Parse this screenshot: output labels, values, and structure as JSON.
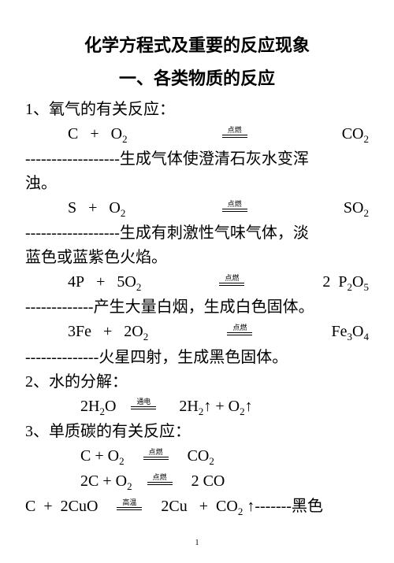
{
  "title": "化学方程式及重要的反应现象",
  "subtitle": "一、各类物质的反应",
  "s1": {
    "heading": "1、氧气的有关反应：",
    "r1": {
      "lhs": "C",
      "plus": "+",
      "o2": "O",
      "sub2": "2",
      "cond": "点燃",
      "rhs": "CO",
      "rsub": "2"
    },
    "d1a": "------------------",
    "d1b": "生成气体使澄清石灰水变浑",
    "d1c": "浊。",
    "r2": {
      "lhs": "S",
      "plus": "+",
      "o2": "O",
      "sub2": "2",
      "cond": "点燃",
      "rhs": "SO",
      "rsub": "2"
    },
    "d2a": "------------------",
    "d2b": "生成有刺激性气味气体，淡",
    "d2c": "蓝色或蓝紫色火焰。",
    "r3": {
      "lhs": "4P",
      "plus": "+",
      "o2": "5O",
      "sub2": "2",
      "cond": "点燃",
      "rcoef": "2",
      "rhs": "P",
      "r2": "2",
      "r3": "O",
      "r5": "5"
    },
    "d3": "-------------产生大量白烟，生成白色固体。",
    "r4": {
      "lhs": "3Fe",
      "plus": "+",
      "o2": "2O",
      "sub2": "2",
      "cond": "点燃",
      "rhs": "Fe",
      "r3": "3",
      "ro": "O",
      "r4": "4"
    },
    "d4": "--------------火星四射，生成黑色固体。"
  },
  "s2": {
    "heading": "2、水的分解：",
    "r1": {
      "lhs": "2H",
      "ls2": "2",
      "o": "O",
      "cond": "通电",
      "rhs1": "2H",
      "rs2": "2",
      "up1": "↑",
      "plus": "+",
      "rhs2": "O",
      "rs22": "2",
      "up2": "↑"
    }
  },
  "s3": {
    "heading": "3、单质碳的有关反应：",
    "r1": {
      "lhs": "C + O",
      "sub2": "2",
      "cond": "点燃",
      "rhs": "CO",
      "rsub": "2"
    },
    "r2": {
      "lhs": "2C + O",
      "sub2": "2",
      "cond": "点燃",
      "rhs": "2 CO"
    },
    "r3": {
      "lhs": "C",
      "plus": "+",
      "cuo": "2CuO",
      "cond": "高温",
      "cu": "2Cu",
      "plus2": "+",
      "co2": "CO",
      "sub22": "2",
      "up": "↑",
      "tail": "-------黑色"
    }
  },
  "pageNum": "1"
}
